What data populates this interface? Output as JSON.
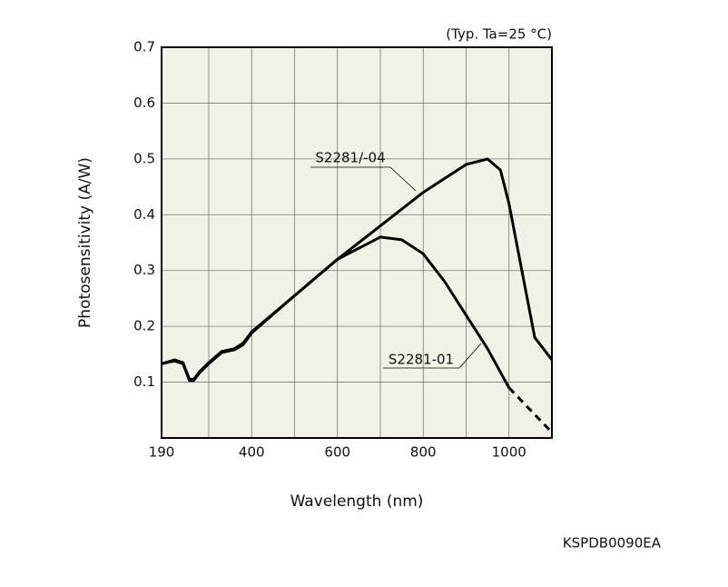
{
  "chart_data": {
    "type": "line",
    "title": "(Typ. Ta=25 °C)",
    "x_label": "Wavelength (nm)",
    "y_label": "Photosensitivity (A/W)",
    "footnote": "KSPDB0090EA",
    "xlim": [
      190,
      1100
    ],
    "xticks": [
      190,
      400,
      600,
      800,
      1000
    ],
    "xminor": [
      300,
      500,
      700,
      900
    ],
    "ylim": [
      0,
      0.7
    ],
    "yticks": [
      0.1,
      0.2,
      0.3,
      0.4,
      0.5,
      0.6,
      0.7
    ],
    "grid": true,
    "background": "#f3f1e6",
    "series": [
      {
        "name": "S2281/-04",
        "color": "#000000",
        "x": [
          190,
          220,
          240,
          255,
          265,
          280,
          300,
          330,
          360,
          380,
          400,
          500,
          600,
          700,
          800,
          900,
          950,
          980,
          1000,
          1030,
          1060,
          1090,
          1100
        ],
        "values": [
          0.133,
          0.14,
          0.135,
          0.105,
          0.105,
          0.12,
          0.135,
          0.155,
          0.16,
          0.17,
          0.19,
          0.255,
          0.32,
          0.38,
          0.44,
          0.49,
          0.5,
          0.48,
          0.42,
          0.3,
          0.18,
          0.15,
          0.14
        ]
      },
      {
        "name": "S2281-01",
        "color": "#000000",
        "dashed_from": 1000,
        "x": [
          190,
          220,
          240,
          255,
          265,
          280,
          300,
          330,
          360,
          380,
          400,
          500,
          600,
          700,
          750,
          800,
          850,
          900,
          950,
          1000,
          1050,
          1100
        ],
        "values": [
          0.133,
          0.138,
          0.133,
          0.103,
          0.103,
          0.118,
          0.133,
          0.153,
          0.158,
          0.167,
          0.188,
          0.255,
          0.32,
          0.36,
          0.355,
          0.33,
          0.28,
          0.22,
          0.16,
          0.09,
          0.05,
          0.01
        ]
      }
    ]
  }
}
